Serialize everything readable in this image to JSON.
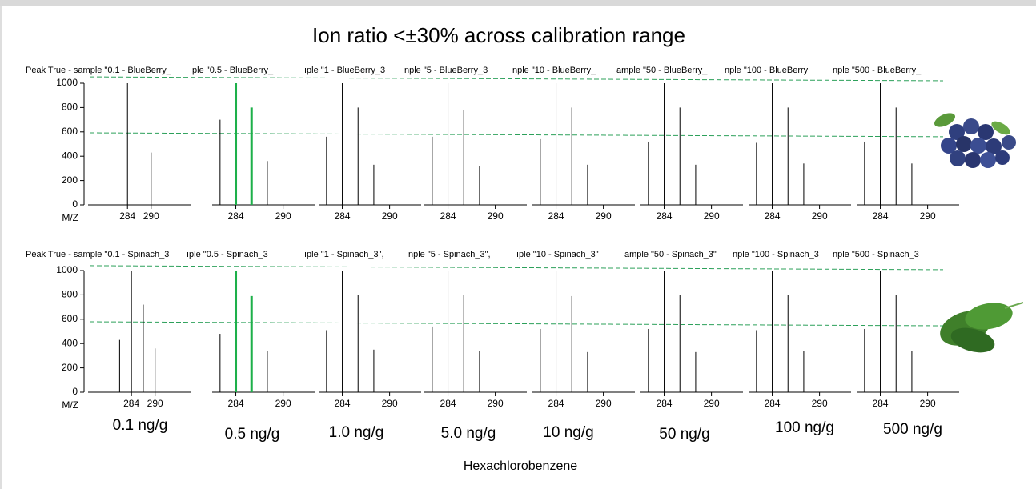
{
  "title": "Ion ratio <±30% across calibration range",
  "xlabel": "Hexachlorobenzene",
  "concentrations": [
    "0.1 ng/g",
    "0.5 ng/g",
    "1.0 ng/g",
    "5.0 ng/g",
    "10 ng/g",
    "50 ng/g",
    "100 ng/g",
    "500 ng/g"
  ],
  "chart_data": [
    {
      "type": "stem",
      "xlabel": "M/Z",
      "ylim": [
        0,
        1000
      ],
      "yticks": [
        0,
        200,
        400,
        600,
        800,
        1000
      ],
      "reference_lines": [
        {
          "color": "#2ca05a",
          "values": [
            1052,
            1020
          ]
        },
        {
          "color": "#2ca05a",
          "values": [
            592,
            560
          ]
        }
      ],
      "panels": [
        {
          "title": "Peak True - sample \"0.1 - BlueBerry_",
          "xlim": [
            274,
            300
          ],
          "xticks": [
            284,
            290
          ],
          "series": [
            {
              "color": "#000000",
              "x": [
                284,
                290
              ],
              "values": [
                1000,
                430
              ]
            }
          ]
        },
        {
          "title": "ıple \"0.5 - BlueBerry_",
          "xlim": [
            281,
            294
          ],
          "xticks": [
            284,
            290
          ],
          "series": [
            {
              "color": "#000000",
              "x": [
                282,
                288
              ],
              "values": [
                700,
                360
              ]
            },
            {
              "color": "#1db04a",
              "x": [
                284,
                286
              ],
              "values": [
                1000,
                800
              ]
            }
          ]
        },
        {
          "title": "ıple \"1 - BlueBerry_3",
          "xlim": [
            281,
            294
          ],
          "xticks": [
            284,
            290
          ],
          "series": [
            {
              "color": "#000000",
              "x": [
                282,
                284,
                286,
                288
              ],
              "values": [
                560,
                1000,
                800,
                330
              ]
            }
          ]
        },
        {
          "title": "nple \"5 - BlueBerry_3",
          "xlim": [
            281,
            294
          ],
          "xticks": [
            284,
            290
          ],
          "series": [
            {
              "color": "#000000",
              "x": [
                282,
                284,
                286,
                288
              ],
              "values": [
                560,
                1000,
                780,
                320
              ]
            }
          ]
        },
        {
          "title": "nple \"10 - BlueBerry_",
          "xlim": [
            281,
            294
          ],
          "xticks": [
            284,
            290
          ],
          "series": [
            {
              "color": "#000000",
              "x": [
                282,
                284,
                286,
                288
              ],
              "values": [
                540,
                1000,
                800,
                330
              ]
            }
          ]
        },
        {
          "title": "ample \"50 - BlueBerry_",
          "xlim": [
            281,
            294
          ],
          "xticks": [
            284,
            290
          ],
          "series": [
            {
              "color": "#000000",
              "x": [
                282,
                284,
                286,
                288
              ],
              "values": [
                520,
                1000,
                800,
                330
              ]
            }
          ]
        },
        {
          "title": "nple \"100 - BlueBerry",
          "xlim": [
            281,
            294
          ],
          "xticks": [
            284,
            290
          ],
          "series": [
            {
              "color": "#000000",
              "x": [
                282,
                284,
                286,
                288
              ],
              "values": [
                510,
                1000,
                800,
                340
              ]
            }
          ]
        },
        {
          "title": "nple \"500 - BlueBerry_",
          "xlim": [
            281,
            294
          ],
          "xticks": [
            284,
            290
          ],
          "series": [
            {
              "color": "#000000",
              "x": [
                282,
                284,
                286,
                288
              ],
              "values": [
                520,
                1000,
                800,
                340
              ]
            }
          ]
        }
      ]
    },
    {
      "type": "stem",
      "xlabel": "M/Z",
      "ylim": [
        0,
        1000
      ],
      "yticks": [
        0,
        200,
        400,
        600,
        800,
        1000
      ],
      "reference_lines": [
        {
          "color": "#2ca05a",
          "values": [
            1040,
            1007
          ]
        },
        {
          "color": "#2ca05a",
          "values": [
            579,
            546
          ]
        }
      ],
      "panels": [
        {
          "title": "Peak True - sample \"0.1 - Spinach_3",
          "xlim": [
            273,
            299
          ],
          "xticks": [
            284,
            290
          ],
          "series": [
            {
              "color": "#000000",
              "x": [
                281,
                284,
                287,
                290
              ],
              "values": [
                430,
                1000,
                720,
                360
              ]
            }
          ]
        },
        {
          "title": "ıple \"0.5 - Spinach_3",
          "xlim": [
            281,
            294
          ],
          "xticks": [
            284,
            290
          ],
          "series": [
            {
              "color": "#000000",
              "x": [
                282,
                288
              ],
              "values": [
                480,
                340
              ]
            },
            {
              "color": "#1db04a",
              "x": [
                284,
                286
              ],
              "values": [
                1000,
                790
              ]
            }
          ]
        },
        {
          "title": "ıple \"1 - Spinach_3\",",
          "xlim": [
            281,
            294
          ],
          "xticks": [
            284,
            290
          ],
          "series": [
            {
              "color": "#000000",
              "x": [
                282,
                284,
                286,
                288
              ],
              "values": [
                510,
                1000,
                800,
                350
              ]
            }
          ]
        },
        {
          "title": "nple \"5 - Spinach_3\",",
          "xlim": [
            281,
            294
          ],
          "xticks": [
            284,
            290
          ],
          "series": [
            {
              "color": "#000000",
              "x": [
                282,
                284,
                286,
                288
              ],
              "values": [
                540,
                1000,
                800,
                340
              ]
            }
          ]
        },
        {
          "title": "ıple \"10 - Spinach_3\"",
          "xlim": [
            281,
            294
          ],
          "xticks": [
            284,
            290
          ],
          "series": [
            {
              "color": "#000000",
              "x": [
                282,
                284,
                286,
                288
              ],
              "values": [
                520,
                1000,
                790,
                330
              ]
            }
          ]
        },
        {
          "title": "ample \"50 - Spinach_3\"",
          "xlim": [
            281,
            294
          ],
          "xticks": [
            284,
            290
          ],
          "series": [
            {
              "color": "#000000",
              "x": [
                282,
                284,
                286,
                288
              ],
              "values": [
                520,
                1000,
                800,
                330
              ]
            }
          ]
        },
        {
          "title": "nple \"100 - Spinach_3",
          "xlim": [
            281,
            294
          ],
          "xticks": [
            284,
            290
          ],
          "series": [
            {
              "color": "#000000",
              "x": [
                282,
                284,
                286,
                288
              ],
              "values": [
                510,
                1000,
                800,
                340
              ]
            }
          ]
        },
        {
          "title": "nple \"500 - Spinach_3",
          "xlim": [
            281,
            294
          ],
          "xticks": [
            284,
            290
          ],
          "series": [
            {
              "color": "#000000",
              "x": [
                282,
                284,
                286,
                288
              ],
              "values": [
                520,
                1000,
                800,
                340
              ]
            }
          ]
        }
      ]
    }
  ]
}
